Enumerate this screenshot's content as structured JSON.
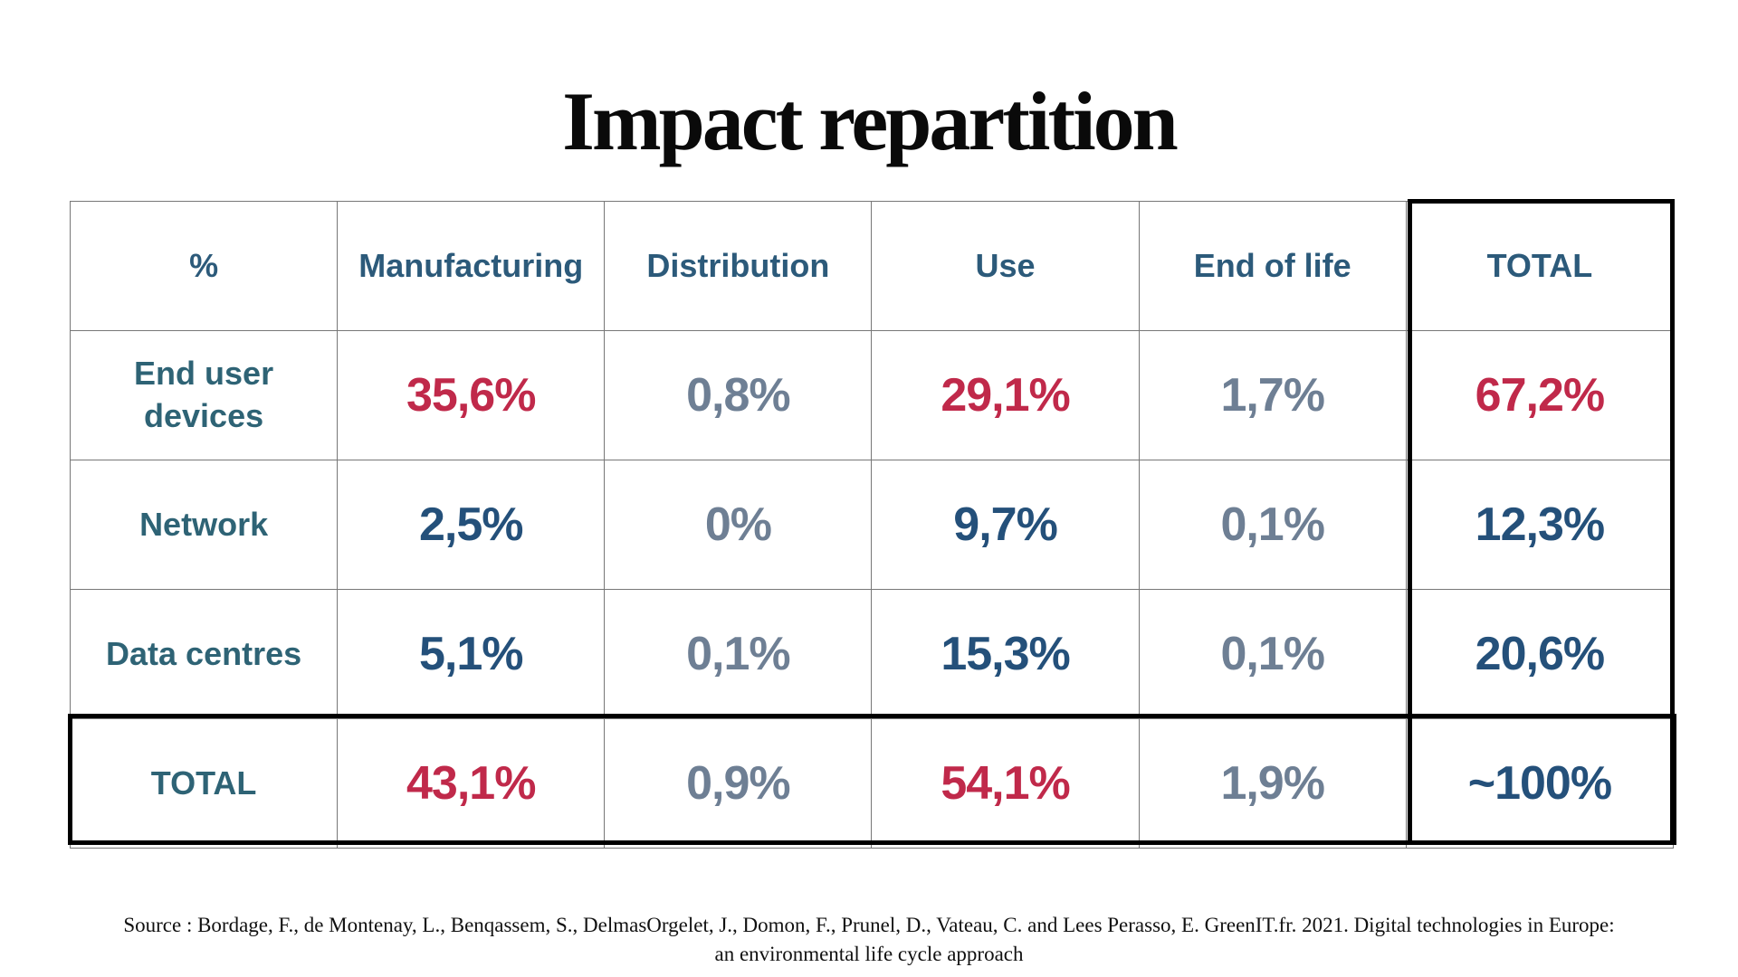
{
  "title": "Impact repartition",
  "table": {
    "header": [
      "%",
      "Manufacturing",
      "Distribution",
      "Use",
      "End of life",
      "TOTAL"
    ],
    "rows": [
      {
        "label_line1": "End user",
        "label_line2": "devices",
        "manufacturing": "35,6%",
        "distribution": "0,8%",
        "use": "29,1%",
        "end_of_life": "1,7%",
        "total": "67,2%"
      },
      {
        "label": "Network",
        "manufacturing": "2,5%",
        "distribution": "0%",
        "use": "9,7%",
        "end_of_life": "0,1%",
        "total": "12,3%"
      },
      {
        "label": "Data centres",
        "manufacturing": "5,1%",
        "distribution": "0,1%",
        "use": "15,3%",
        "end_of_life": "0,1%",
        "total": "20,6%"
      }
    ],
    "totals": {
      "label": "TOTAL",
      "manufacturing": "43,1%",
      "distribution": "0,9%",
      "use": "54,1%",
      "end_of_life": "1,9%",
      "total": "~100%"
    }
  },
  "colors": {
    "highlight_red": "#c0294a",
    "value_navy": "#24507a",
    "value_gray": "#6e7f94",
    "header_blue": "#2c5a7a",
    "row_label_teal": "#2e6375"
  },
  "source": {
    "line1": "Source : Bordage, F., de Montenay, L., Benqassem, S., DelmasOrgelet, J., Domon, F., Prunel, D., Vateau, C. and Lees Perasso, E. GreenIT.fr. 2021. Digital technologies in Europe:",
    "line2": "an environmental life cycle approach"
  }
}
